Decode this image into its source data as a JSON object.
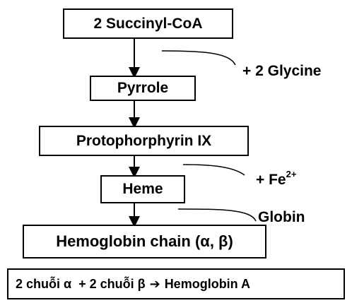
{
  "nodes": {
    "succinyl": "2 Succinyl-CoA",
    "pyrrole": "Pyrrole",
    "protoporphyrin": "Protophorphyrin IX",
    "heme": "Heme",
    "hemoglobin_chain": "Hemoglobin chain (α, β)"
  },
  "inputs": {
    "glycine": "+ 2 Glycine",
    "fe_prefix": "+ Fe",
    "fe_charge": "2+",
    "globin": "Globin"
  },
  "summary": {
    "left": "2 chuỗi α  + 2 chuỗi β",
    "arrow": "➔",
    "right": "Hemoglobin A"
  }
}
